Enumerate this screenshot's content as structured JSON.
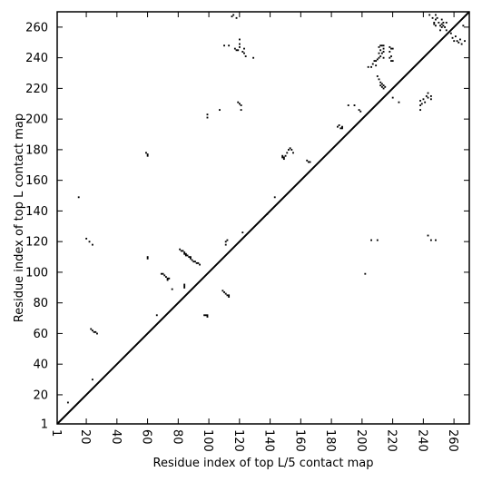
{
  "chart_data": {
    "type": "heatmap",
    "title": "",
    "xlabel": "Residue index of top L/5 contact map",
    "ylabel": "Residue index of top L contact map",
    "xlim": [
      1,
      270
    ],
    "ylim": [
      1,
      270
    ],
    "x_ticks": [
      1,
      20,
      40,
      60,
      80,
      100,
      120,
      140,
      160,
      180,
      200,
      220,
      240,
      260
    ],
    "y_ticks": [
      1,
      20,
      40,
      60,
      80,
      100,
      120,
      140,
      160,
      180,
      200,
      220,
      240,
      260
    ],
    "x_tick_labels": [
      "1",
      "20",
      "40",
      "60",
      "80",
      "100",
      "120",
      "140",
      "160",
      "180",
      "200",
      "220",
      "240",
      "260"
    ],
    "y_tick_labels": [
      "1",
      "20",
      "40",
      "60",
      "80",
      "100",
      "120",
      "140",
      "160",
      "180",
      "200",
      "220",
      "240",
      "260"
    ],
    "x_tick_rotation_deg": -90,
    "diagonal": true,
    "grid": false,
    "legend": "none",
    "colors": {
      "contact": "#000000",
      "background": "#ffffff",
      "axis": "#000000"
    },
    "contacts_lower": [
      [
        8,
        15
      ],
      [
        15,
        149
      ],
      [
        20,
        122
      ],
      [
        22,
        120
      ],
      [
        24,
        118
      ],
      [
        24,
        30
      ],
      [
        23,
        63
      ],
      [
        24,
        62
      ],
      [
        25,
        61
      ],
      [
        26,
        61
      ],
      [
        27,
        60
      ],
      [
        59,
        178
      ],
      [
        60,
        177
      ],
      [
        60,
        176
      ],
      [
        60,
        110
      ],
      [
        60,
        109
      ],
      [
        66,
        72
      ],
      [
        69,
        99
      ],
      [
        70,
        99
      ],
      [
        71,
        98
      ],
      [
        72,
        97
      ],
      [
        73,
        96
      ],
      [
        73,
        95
      ],
      [
        74,
        96
      ],
      [
        76,
        89
      ],
      [
        81,
        115
      ],
      [
        82,
        114
      ],
      [
        83,
        114
      ],
      [
        84,
        113
      ],
      [
        84,
        112
      ],
      [
        85,
        112
      ],
      [
        85,
        111
      ],
      [
        86,
        111
      ],
      [
        87,
        110
      ],
      [
        88,
        110
      ],
      [
        88,
        109
      ],
      [
        89,
        108
      ],
      [
        90,
        107
      ],
      [
        91,
        107
      ],
      [
        92,
        106
      ],
      [
        93,
        106
      ],
      [
        94,
        105
      ],
      [
        84,
        92
      ],
      [
        84,
        91
      ],
      [
        84,
        90
      ],
      [
        97,
        72
      ],
      [
        98,
        72
      ],
      [
        99,
        72
      ],
      [
        99,
        71
      ],
      [
        109,
        88
      ],
      [
        110,
        87
      ],
      [
        111,
        86
      ],
      [
        112,
        85
      ],
      [
        113,
        85
      ],
      [
        113,
        84
      ],
      [
        111,
        120
      ],
      [
        111,
        118
      ],
      [
        112,
        121
      ],
      [
        122,
        126
      ],
      [
        138,
        138
      ],
      [
        143,
        149
      ],
      [
        148,
        176
      ],
      [
        148,
        175
      ],
      [
        149,
        175
      ],
      [
        149,
        174
      ],
      [
        150,
        176
      ],
      [
        151,
        178
      ],
      [
        152,
        180
      ],
      [
        153,
        181
      ],
      [
        154,
        180
      ],
      [
        155,
        178
      ],
      [
        164,
        173
      ],
      [
        165,
        172
      ],
      [
        166,
        172
      ],
      [
        184,
        195
      ],
      [
        185,
        196
      ],
      [
        186,
        194
      ],
      [
        187,
        195
      ],
      [
        187,
        194
      ],
      [
        191,
        209
      ],
      [
        195,
        209
      ],
      [
        198,
        206
      ],
      [
        199,
        205
      ],
      [
        202,
        99
      ],
      [
        206,
        121
      ],
      [
        210,
        121
      ]
    ],
    "contacts_upper": [
      [
        99,
        203
      ],
      [
        99,
        201
      ],
      [
        107,
        206
      ],
      [
        110,
        248
      ],
      [
        113,
        248
      ],
      [
        115,
        267
      ],
      [
        116,
        268
      ],
      [
        118,
        266
      ],
      [
        117,
        246
      ],
      [
        118,
        245
      ],
      [
        119,
        245
      ],
      [
        120,
        247
      ],
      [
        120,
        249
      ],
      [
        120,
        252
      ],
      [
        122,
        244
      ],
      [
        123,
        246
      ],
      [
        123,
        243
      ],
      [
        124,
        241
      ],
      [
        129,
        240
      ],
      [
        119,
        211
      ],
      [
        120,
        210
      ],
      [
        121,
        209
      ],
      [
        121,
        206
      ],
      [
        204,
        234
      ],
      [
        206,
        234
      ],
      [
        207,
        236
      ],
      [
        208,
        238
      ],
      [
        209,
        238
      ],
      [
        209,
        235
      ],
      [
        210,
        239
      ],
      [
        210,
        228
      ],
      [
        211,
        240
      ],
      [
        211,
        226
      ],
      [
        211,
        243
      ],
      [
        211,
        247
      ],
      [
        212,
        241
      ],
      [
        212,
        245
      ],
      [
        212,
        248
      ],
      [
        213,
        243
      ],
      [
        213,
        248
      ],
      [
        214,
        240
      ],
      [
        214,
        244
      ],
      [
        214,
        246
      ],
      [
        214,
        248
      ],
      [
        212,
        224
      ],
      [
        212,
        222
      ],
      [
        213,
        221
      ],
      [
        213,
        223
      ],
      [
        214,
        222
      ],
      [
        214,
        220
      ],
      [
        215,
        221
      ],
      [
        218,
        247
      ],
      [
        218,
        244
      ],
      [
        218,
        240
      ],
      [
        219,
        246
      ],
      [
        219,
        241
      ],
      [
        219,
        238
      ],
      [
        220,
        246
      ],
      [
        220,
        238
      ],
      [
        220,
        214
      ],
      [
        224,
        211
      ],
      [
        238,
        206
      ],
      [
        238,
        209
      ],
      [
        238,
        212
      ],
      [
        239,
        210
      ],
      [
        240,
        213
      ],
      [
        241,
        211
      ],
      [
        242,
        215
      ],
      [
        243,
        214
      ],
      [
        243,
        217
      ],
      [
        245,
        213
      ],
      [
        245,
        215
      ],
      [
        243,
        124
      ],
      [
        245,
        121
      ],
      [
        248,
        121
      ],
      [
        244,
        268
      ],
      [
        246,
        266
      ],
      [
        247,
        263
      ],
      [
        247,
        262
      ],
      [
        248,
        265
      ],
      [
        248,
        261
      ],
      [
        249,
        266
      ],
      [
        250,
        263
      ],
      [
        251,
        261
      ],
      [
        251,
        258
      ],
      [
        252,
        265
      ],
      [
        252,
        262
      ],
      [
        252,
        260
      ],
      [
        253,
        263
      ],
      [
        253,
        261
      ],
      [
        254,
        260
      ],
      [
        255,
        263
      ],
      [
        255,
        258
      ],
      [
        258,
        256
      ],
      [
        259,
        253
      ],
      [
        260,
        251
      ],
      [
        261,
        254
      ],
      [
        262,
        251
      ],
      [
        263,
        250
      ],
      [
        264,
        252
      ],
      [
        265,
        249
      ],
      [
        266,
        261
      ],
      [
        267,
        251
      ],
      [
        248,
        268
      ]
    ]
  }
}
